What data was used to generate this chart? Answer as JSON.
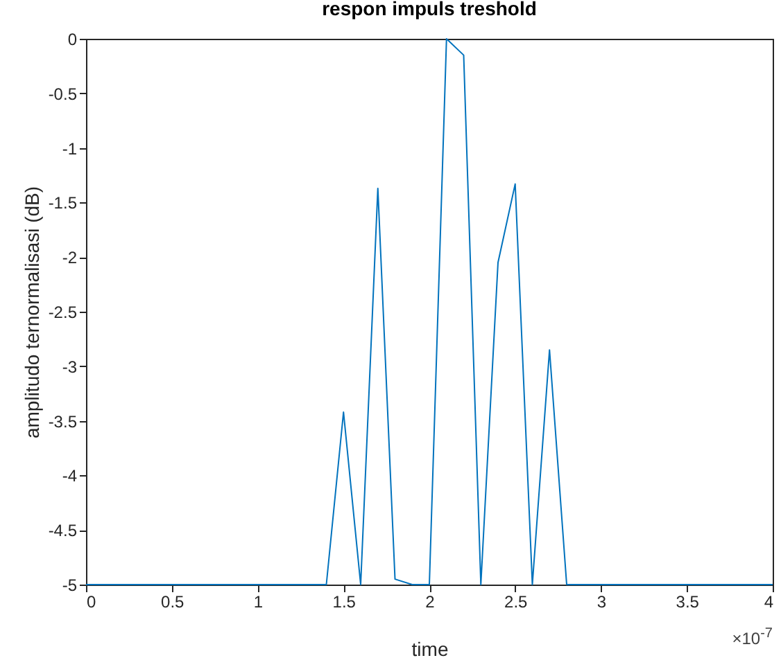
{
  "chart_data": {
    "type": "line",
    "title": "respon impuls treshold",
    "xlabel": "time",
    "ylabel": "amplitudo ternormalisasi (dB)",
    "x": [
      0,
      1.4,
      1.5,
      1.6,
      1.7,
      1.8,
      1.9,
      2.0,
      2.1,
      2.2,
      2.3,
      2.4,
      2.5,
      2.6,
      2.7,
      2.8,
      4
    ],
    "series": [
      {
        "color": "#0072bd",
        "values": [
          -5,
          -5,
          -3.42,
          -5,
          -1.37,
          -4.95,
          -5,
          -5,
          0,
          -0.15,
          -5,
          -2.05,
          -1.33,
          -5,
          -2.85,
          -5,
          -5
        ]
      }
    ],
    "xlim": [
      0,
      4
    ],
    "xticks": [
      0,
      0.5,
      1,
      1.5,
      2,
      2.5,
      3,
      3.5,
      4
    ],
    "ylim": [
      -5,
      0
    ],
    "yticks": [
      -5,
      -4.5,
      -4,
      -3.5,
      -3,
      -2.5,
      -2,
      -1.5,
      -1,
      -0.5,
      0
    ],
    "grid": false,
    "annotations": [
      "×10$^{-7}$"
    ]
  }
}
